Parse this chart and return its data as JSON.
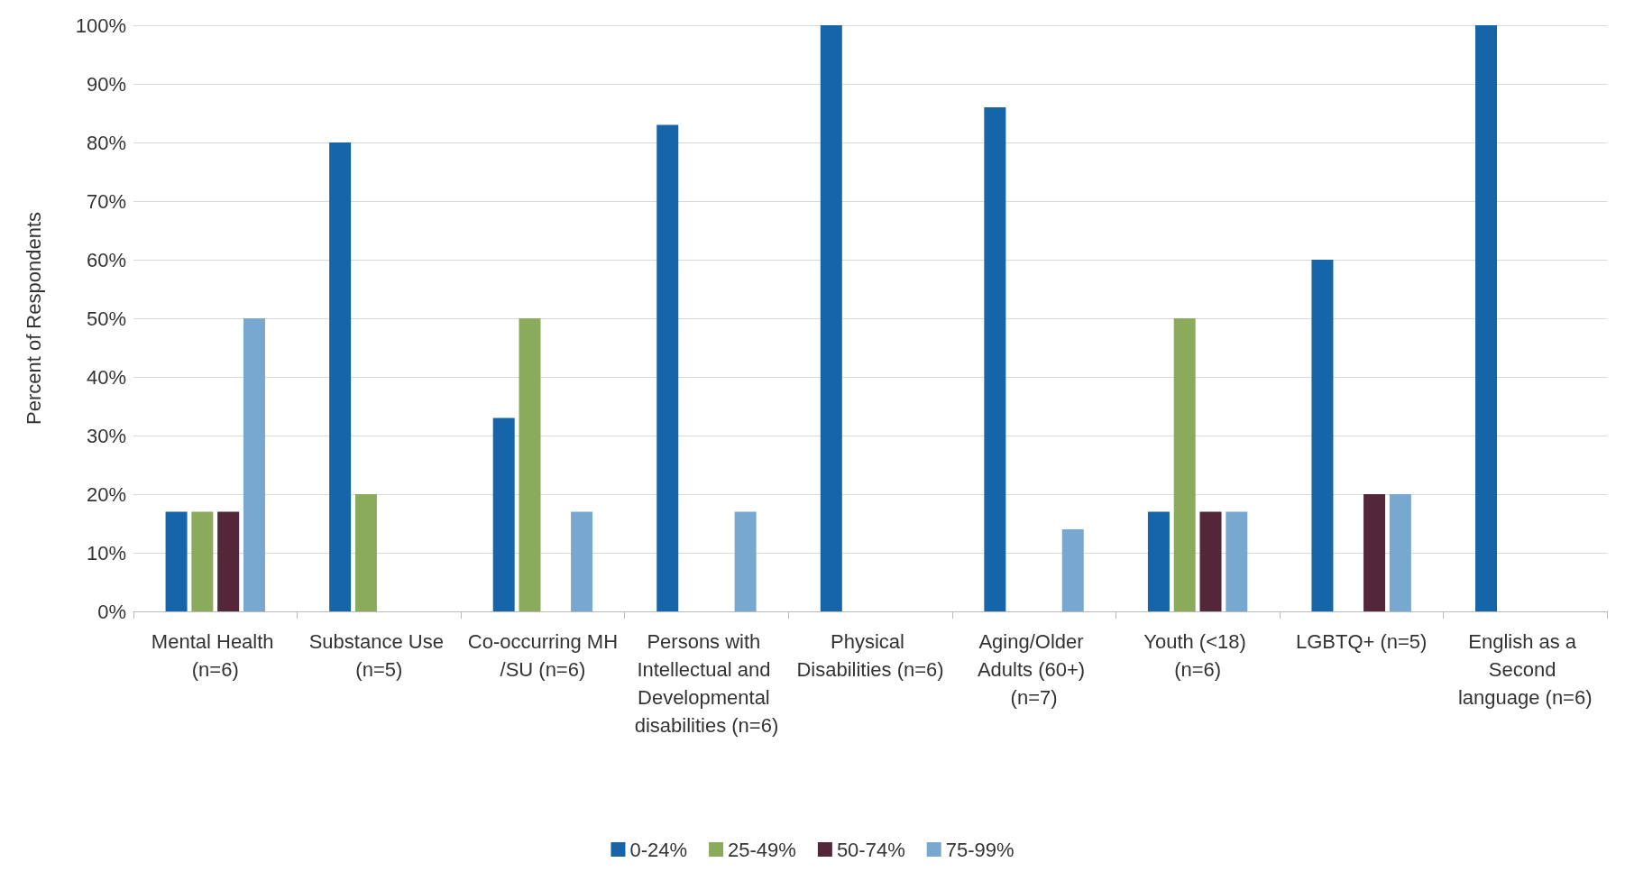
{
  "chart_data": {
    "type": "bar",
    "ylabel": "Percent of Respondents",
    "categories": [
      "Mental Health (n=6)",
      "Substance Use (n=5)",
      "Co-occurring MH/SU (n=6)",
      "Persons with Intellectual and Developmental disabilities (n=6)",
      "Physical Disabilities (n=6)",
      "Aging/Older Adults (60+) (n=7)",
      "Youth (<18) (n=6)",
      "LGBTQ+ (n=5)",
      "English as a Second language (n=6)"
    ],
    "series": [
      {
        "name": "0-24%",
        "color": "#1565a8",
        "values": [
          17,
          80,
          33,
          83,
          100,
          86,
          17,
          60,
          100
        ]
      },
      {
        "name": "25-49%",
        "color": "#8aab5c",
        "values": [
          17,
          20,
          50,
          null,
          null,
          null,
          50,
          null,
          null
        ]
      },
      {
        "name": "50-74%",
        "color": "#54263a",
        "values": [
          17,
          null,
          null,
          null,
          null,
          null,
          17,
          20,
          null
        ]
      },
      {
        "name": "75-99%",
        "color": "#78a8cf",
        "values": [
          50,
          null,
          17,
          17,
          null,
          14,
          17,
          20,
          null
        ]
      }
    ],
    "ylim": [
      0,
      100
    ],
    "yticks": [
      {
        "value": 0,
        "label": "0%"
      },
      {
        "value": 10,
        "label": "10%"
      },
      {
        "value": 20,
        "label": "20%"
      },
      {
        "value": 30,
        "label": "30%"
      },
      {
        "value": 40,
        "label": "40%"
      },
      {
        "value": 50,
        "label": "50%"
      },
      {
        "value": 60,
        "label": "60%"
      },
      {
        "value": 70,
        "label": "70%"
      },
      {
        "value": 80,
        "label": "80%"
      },
      {
        "value": 90,
        "label": "90%"
      },
      {
        "value": 100,
        "label": "100%"
      }
    ],
    "grid": "y",
    "legend": "bottom"
  }
}
